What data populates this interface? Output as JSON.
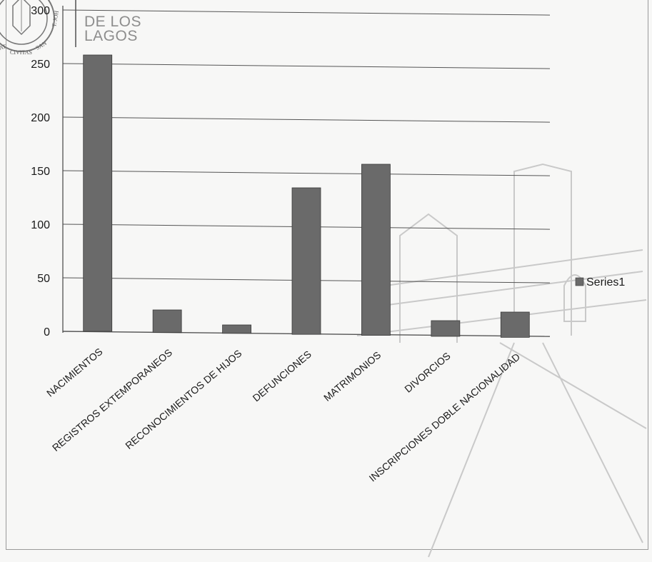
{
  "header": {
    "org_line_1": "DE LOS",
    "org_line_2": "LAGOS"
  },
  "seal": {
    "text_left": "AT",
    "text_middle": "CIVITAS",
    "text_right": "SAN",
    "text_far_right": "T. JOH"
  },
  "colors": {
    "bar": "#6a6a6a",
    "gridline": "#555555",
    "paper": "#f7f7f6",
    "watermark": "#c9c9c9"
  },
  "chart_data": {
    "type": "bar",
    "title": "",
    "xlabel": "",
    "ylabel": "",
    "ylim": [
      0,
      300
    ],
    "yticks": [
      0,
      50,
      100,
      150,
      200,
      250,
      300
    ],
    "grid": true,
    "legend_position": "right",
    "categories": [
      "NACIMIENTOS",
      "REGISTROS EXTEMPORANEOS",
      "RECONOCIMIENTOS DE HIJOS",
      "DEFUNCIONES",
      "MATRIMONIOS",
      "DIVORCIOS",
      "INSCRIPCIONES DOBLE NACIONALIDAD"
    ],
    "series": [
      {
        "name": "Series1",
        "values": [
          258,
          20,
          6,
          134,
          156,
          10,
          18
        ]
      }
    ]
  }
}
